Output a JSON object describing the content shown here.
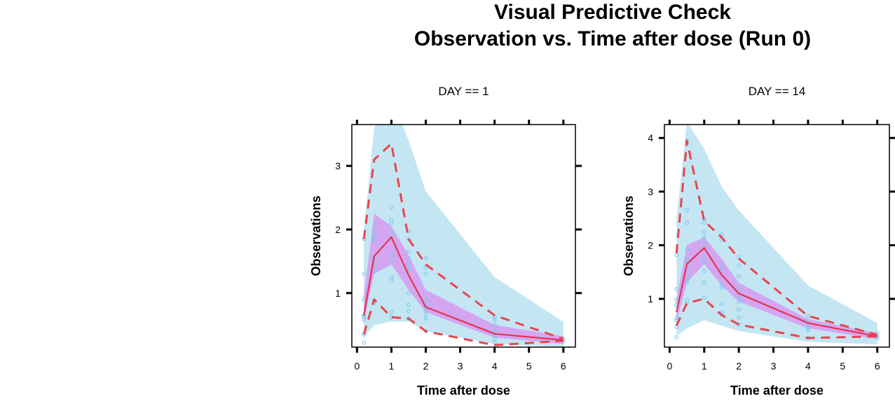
{
  "title": {
    "line1": "Visual Predictive Check",
    "line2": "Observation  vs. Time after dose (Run 0)"
  },
  "colors": {
    "outer_band": "#c4e6f3",
    "median_band": "#d69ef2",
    "observed_percentile_line": "#e8454f",
    "observed_median_line": "#e5334d",
    "observation_points": "#7dc8ea",
    "frame": "#000000"
  },
  "chart_data": [
    {
      "type": "line",
      "panel_label": "DAY == 1",
      "xlabel": "Time after dose",
      "ylabel": "Observations",
      "xlim": [
        -0.15,
        6.35
      ],
      "ylim": [
        0.15,
        3.65
      ],
      "x_ticks": [
        0,
        1,
        2,
        3,
        4,
        5,
        6
      ],
      "y_ticks": [
        1,
        2,
        3
      ],
      "y_axis_side": "left",
      "grid": false,
      "bins_x": [
        0.2,
        0.5,
        1,
        1.5,
        2,
        4,
        6
      ],
      "pi_outer_band": {
        "lower": [
          0.3,
          0.5,
          0.55,
          0.55,
          0.4,
          0.2,
          0.15
        ],
        "upper": [
          2.0,
          3.6,
          4.1,
          3.4,
          2.6,
          1.25,
          0.55
        ]
      },
      "pi_median_band": {
        "lower": [
          0.55,
          1.3,
          1.45,
          1.05,
          0.7,
          0.3,
          0.2
        ],
        "upper": [
          0.95,
          2.25,
          2.05,
          1.6,
          1.05,
          0.5,
          0.32
        ]
      },
      "observed_median": [
        0.65,
        1.58,
        1.88,
        1.28,
        0.78,
        0.36,
        0.26
      ],
      "observed_p95": [
        1.85,
        3.1,
        3.35,
        1.85,
        1.45,
        0.65,
        0.28
      ],
      "observed_p5": [
        0.35,
        0.9,
        0.62,
        0.6,
        0.4,
        0.18,
        0.25
      ],
      "observations": {
        "x": [
          0.2,
          0.2,
          0.2,
          0.2,
          0.2,
          0.2,
          0.2,
          0.2,
          0.5,
          0.5,
          0.5,
          0.5,
          0.5,
          0.5,
          0.5,
          0.5,
          0.5,
          0.5,
          0.5,
          1,
          1,
          1,
          1,
          1,
          1,
          1,
          1,
          1,
          1,
          1,
          1.5,
          1.5,
          1.5,
          1.5,
          1.5,
          1.5,
          1.5,
          1.5,
          1.5,
          1.5,
          1.5,
          2,
          2,
          2,
          2,
          2,
          2,
          2,
          2,
          2,
          2,
          4,
          4,
          4,
          4,
          4,
          4,
          4,
          4,
          6,
          6
        ],
        "y": [
          1.85,
          1.3,
          0.9,
          0.62,
          0.58,
          0.35,
          0.22,
          0.65,
          2.02,
          1.97,
          1.92,
          1.88,
          1.82,
          1.45,
          1.4,
          1.35,
          1.55,
          0.88,
          0.85,
          2.35,
          2.15,
          2.1,
          1.97,
          1.88,
          1.6,
          1.5,
          1.25,
          1.2,
          0.7,
          0.62,
          1.97,
          1.85,
          1.65,
          1.55,
          1.45,
          1.38,
          1.35,
          1.0,
          0.82,
          0.72,
          0.6,
          1.55,
          1.4,
          1.3,
          0.9,
          0.85,
          0.78,
          0.72,
          0.65,
          0.6,
          0.4,
          0.62,
          0.58,
          0.5,
          0.42,
          0.36,
          0.32,
          0.28,
          0.22,
          0.28,
          0.24
        ]
      }
    },
    {
      "type": "line",
      "panel_label": "DAY == 14",
      "xlabel": "Time after dose",
      "ylabel": "Observations",
      "xlim": [
        -0.15,
        6.35
      ],
      "ylim": [
        0.1,
        4.25
      ],
      "x_ticks": [
        0,
        1,
        2,
        3,
        4,
        5,
        6
      ],
      "y_ticks": [
        1,
        2,
        3,
        4
      ],
      "y_axis_side": "left",
      "grid": false,
      "bins_x": [
        0.2,
        0.5,
        1,
        1.5,
        2,
        4,
        6
      ],
      "pi_outer_band": {
        "lower": [
          0.3,
          0.45,
          0.6,
          0.5,
          0.4,
          0.2,
          0.15
        ],
        "upper": [
          2.5,
          4.3,
          3.8,
          3.1,
          2.65,
          1.25,
          0.55
        ]
      },
      "pi_median_band": {
        "lower": [
          0.55,
          1.3,
          1.65,
          1.25,
          0.95,
          0.45,
          0.25
        ],
        "upper": [
          1.0,
          2.0,
          2.15,
          1.75,
          1.3,
          0.62,
          0.36
        ]
      },
      "observed_median": [
        0.75,
        1.65,
        1.95,
        1.45,
        1.1,
        0.55,
        0.3
      ],
      "observed_p95": [
        1.85,
        3.95,
        2.45,
        2.15,
        1.75,
        0.68,
        0.33
      ],
      "observed_p5": [
        0.5,
        0.92,
        1.0,
        0.7,
        0.52,
        0.27,
        0.3
      ],
      "observations": {
        "x": [
          0.2,
          0.2,
          0.2,
          0.2,
          0.2,
          0.2,
          0.2,
          0.2,
          0.5,
          0.5,
          0.5,
          0.5,
          0.5,
          0.5,
          0.5,
          0.5,
          0.5,
          0.5,
          0.5,
          0.5,
          1,
          1,
          1,
          1,
          1,
          1,
          1,
          1,
          1,
          1,
          1,
          1.5,
          1.5,
          1.5,
          1.5,
          1.5,
          1.5,
          1.5,
          1.5,
          1.5,
          2,
          2,
          2,
          2,
          2,
          2,
          2,
          2,
          2,
          2,
          4,
          4,
          4,
          4,
          4,
          4,
          6,
          6,
          6
        ],
        "y": [
          1.82,
          1.18,
          0.98,
          0.88,
          0.65,
          0.6,
          0.48,
          0.28,
          3.95,
          2.65,
          2.42,
          1.92,
          1.72,
          1.65,
          1.55,
          1.45,
          1.35,
          1.3,
          0.98,
          0.92,
          2.48,
          2.42,
          2.25,
          2.15,
          2.05,
          1.95,
          1.78,
          1.68,
          1.52,
          1.3,
          1.02,
          2.2,
          2.1,
          1.6,
          1.52,
          1.28,
          1.2,
          0.9,
          0.75,
          0.72,
          1.78,
          1.62,
          1.42,
          1.22,
          1.12,
          1.02,
          0.95,
          0.8,
          0.65,
          0.52,
          0.68,
          0.58,
          0.52,
          0.45,
          0.42,
          0.27,
          0.36,
          0.3,
          0.27
        ]
      }
    }
  ]
}
